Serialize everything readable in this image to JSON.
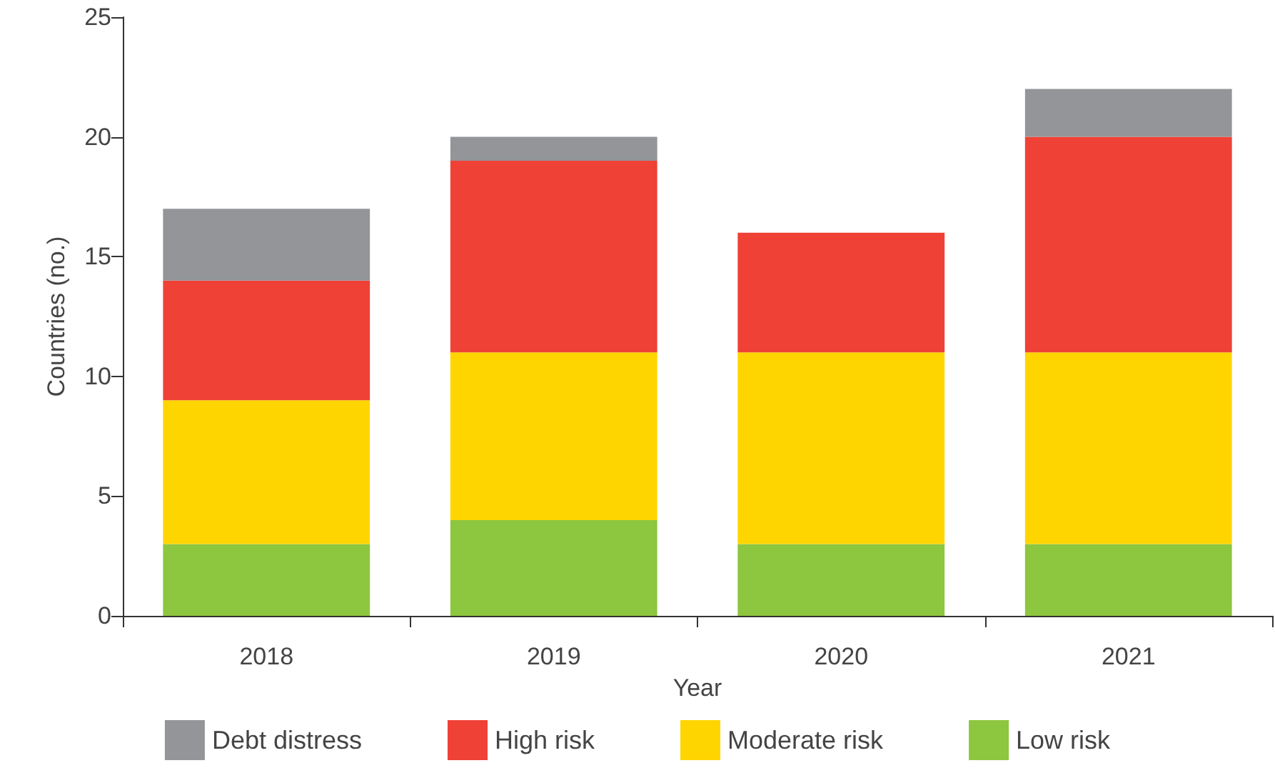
{
  "chart_data": {
    "type": "bar",
    "stacked": true,
    "xlabel": "Year",
    "ylabel": "Countries (no.)",
    "categories": [
      "2018",
      "2019",
      "2020",
      "2021"
    ],
    "series": [
      {
        "name": "Low risk",
        "color": "#8dc63f",
        "values": [
          3,
          4,
          3,
          3
        ]
      },
      {
        "name": "Moderate risk",
        "color": "#ffd500",
        "values": [
          6,
          7,
          8,
          8
        ]
      },
      {
        "name": "High risk",
        "color": "#ef4136",
        "values": [
          5,
          8,
          5,
          9
        ]
      },
      {
        "name": "Debt distress",
        "color": "#939598",
        "values": [
          3,
          1,
          0,
          2
        ]
      }
    ],
    "ylim": [
      0,
      25
    ],
    "yticks": [
      0,
      5,
      10,
      15,
      20,
      25
    ],
    "grid": false,
    "legend": "bottom"
  }
}
